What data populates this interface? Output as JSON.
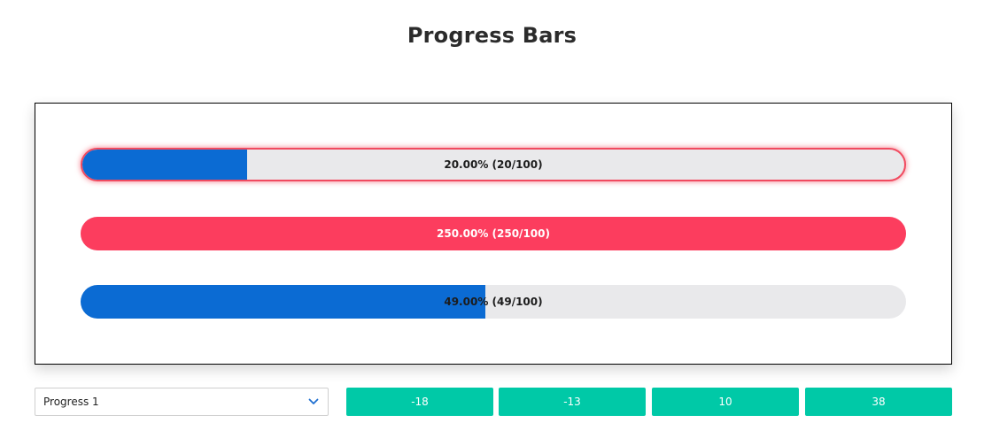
{
  "header": {
    "title": "Progress Bars"
  },
  "bars": [
    {
      "value": 20,
      "limit": 100,
      "label": "20.00% (20/100)",
      "selected": true
    },
    {
      "value": 250,
      "limit": 100,
      "label": "250.00% (250/100)",
      "selected": false
    },
    {
      "value": 49,
      "limit": 100,
      "label": "49.00% (49/100)",
      "selected": false
    }
  ],
  "controls": {
    "select": {
      "value": "Progress 1",
      "chevron_icon": "chevron-down-icon"
    },
    "buttons": [
      {
        "label": "-18"
      },
      {
        "label": "-13"
      },
      {
        "label": "10"
      },
      {
        "label": "38"
      }
    ]
  },
  "colors": {
    "fill_normal": "#0b6bd3",
    "fill_over_limit": "#fc3d5e",
    "track": "#e9e9eb",
    "selected_outline": "#f14a5f",
    "button": "#00c9a7",
    "select_chevron": "#1e6fd0"
  }
}
